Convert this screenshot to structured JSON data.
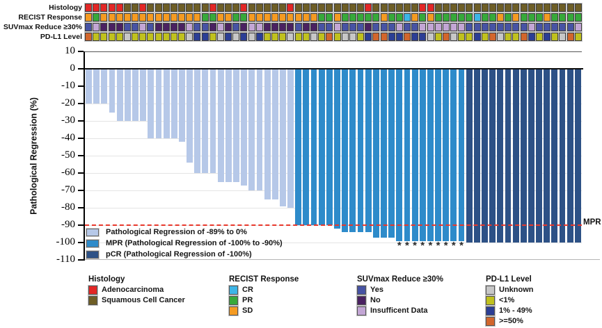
{
  "colors": {
    "bar_light": "#b6c8e8",
    "bar_mpr": "#2e8bca",
    "bar_pcr": "#2d5186",
    "threshold_line": "#e8372b",
    "histology_A": "#e32726",
    "histology_S": "#6e5e26",
    "recist_CR": "#3db5e6",
    "recist_PR": "#37a93a",
    "recist_SD": "#f59b22",
    "suv_Y": "#4753a4",
    "suv_N": "#4a2161",
    "suv_I": "#c3a6d5",
    "pdl1_U": "#c7c7c7",
    "pdl1_L": "#c0c11e",
    "pdl1_M": "#2b3e95",
    "pdl1_H": "#d2662c"
  },
  "tracks": {
    "rows": [
      {
        "label": "Histology",
        "palette_prefix": "histology_",
        "values": [
          "A",
          "A",
          "A",
          "A",
          "A",
          "S",
          "S",
          "A",
          "S",
          "S",
          "S",
          "S",
          "S",
          "S",
          "S",
          "S",
          "A",
          "S",
          "S",
          "S",
          "A",
          "S",
          "S",
          "S",
          "S",
          "S",
          "A",
          "S",
          "S",
          "S",
          "S",
          "S",
          "S",
          "S",
          "S",
          "S",
          "A",
          "S",
          "S",
          "S",
          "S",
          "S",
          "S",
          "A",
          "A",
          "S",
          "S",
          "S",
          "S",
          "S",
          "S",
          "S",
          "S",
          "S",
          "S",
          "S",
          "S",
          "S",
          "S",
          "S",
          "S",
          "S",
          "S",
          "S"
        ]
      },
      {
        "label": "RECIST Response",
        "palette_prefix": "recist_",
        "values": [
          "SD",
          "PR",
          "SD",
          "SD",
          "SD",
          "SD",
          "SD",
          "SD",
          "SD",
          "SD",
          "SD",
          "SD",
          "SD",
          "SD",
          "SD",
          "PR",
          "PR",
          "SD",
          "SD",
          "PR",
          "PR",
          "SD",
          "SD",
          "SD",
          "SD",
          "SD",
          "SD",
          "SD",
          "SD",
          "SD",
          "PR",
          "PR",
          "SD",
          "PR",
          "PR",
          "PR",
          "PR",
          "PR",
          "SD",
          "PR",
          "PR",
          "CR",
          "SD",
          "PR",
          "SD",
          "PR",
          "PR",
          "PR",
          "PR",
          "PR",
          "CR",
          "PR",
          "PR",
          "SD",
          "PR",
          "SD",
          "PR",
          "PR",
          "PR",
          "SD",
          "PR",
          "PR",
          "PR",
          "PR"
        ]
      },
      {
        "label": "SUVmax Reduce ≥30%",
        "palette_prefix": "suv_",
        "values": [
          "Y",
          "I",
          "N",
          "N",
          "N",
          "Y",
          "Y",
          "I",
          "Y",
          "N",
          "N",
          "N",
          "N",
          "I",
          "Y",
          "Y",
          "N",
          "I",
          "N",
          "Y",
          "N",
          "I",
          "I",
          "N",
          "N",
          "N",
          "N",
          "Y",
          "N",
          "N",
          "Y",
          "Y",
          "I",
          "Y",
          "Y",
          "Y",
          "N",
          "Y",
          "Y",
          "Y",
          "I",
          "Y",
          "Y",
          "I",
          "I",
          "I",
          "I",
          "I",
          "I",
          "Y",
          "Y",
          "Y",
          "Y",
          "Y",
          "Y",
          "Y",
          "Y",
          "I",
          "Y",
          "Y",
          "Y",
          "Y",
          "Y",
          "I"
        ]
      },
      {
        "label": "PD-L1 Level",
        "palette_prefix": "pdl1_",
        "values": [
          "H",
          "L",
          "L",
          "L",
          "L",
          "U",
          "L",
          "L",
          "L",
          "L",
          "L",
          "L",
          "L",
          "U",
          "M",
          "M",
          "L",
          "U",
          "M",
          "U",
          "M",
          "U",
          "M",
          "L",
          "L",
          "L",
          "U",
          "L",
          "L",
          "U",
          "L",
          "H",
          "L",
          "U",
          "U",
          "L",
          "M",
          "H",
          "H",
          "M",
          "M",
          "H",
          "M",
          "M",
          "U",
          "L",
          "H",
          "U",
          "L",
          "L",
          "M",
          "L",
          "H",
          "U",
          "L",
          "L",
          "H",
          "M",
          "L",
          "M",
          "L",
          "U",
          "H",
          "L"
        ]
      }
    ]
  },
  "chart_data": {
    "type": "bar",
    "subtype": "waterfall",
    "title": "",
    "xlabel": "",
    "ylabel": "Pathological Regression (%)",
    "ylim": [
      -110,
      10
    ],
    "grid": true,
    "yticks": [
      10,
      0,
      -10,
      -20,
      -30,
      -40,
      -50,
      -60,
      -70,
      -80,
      -90,
      -100,
      -110
    ],
    "values": [
      -20,
      -20,
      -20,
      -25,
      -30,
      -30,
      -30,
      -30,
      -40,
      -40,
      -40,
      -40,
      -42,
      -54,
      -60,
      -60,
      -60,
      -65,
      -65,
      -65,
      -67,
      -70,
      -70,
      -75,
      -75,
      -79,
      -80,
      -90,
      -90,
      -90,
      -90,
      -90,
      -92,
      -94,
      -94,
      -94,
      -94,
      -97,
      -97,
      -97,
      -99,
      -99,
      -99,
      -99,
      -99,
      -99,
      -99,
      -99,
      -99,
      -100,
      -100,
      -100,
      -100,
      -100,
      -100,
      -100,
      -100,
      -100,
      -100,
      -100,
      -100,
      -100,
      -100,
      -100
    ],
    "groups": [
      "light",
      "light",
      "light",
      "light",
      "light",
      "light",
      "light",
      "light",
      "light",
      "light",
      "light",
      "light",
      "light",
      "light",
      "light",
      "light",
      "light",
      "light",
      "light",
      "light",
      "light",
      "light",
      "light",
      "light",
      "light",
      "light",
      "light",
      "mpr",
      "mpr",
      "mpr",
      "mpr",
      "mpr",
      "mpr",
      "mpr",
      "mpr",
      "mpr",
      "mpr",
      "mpr",
      "mpr",
      "mpr",
      "mpr",
      "mpr",
      "mpr",
      "mpr",
      "mpr",
      "mpr",
      "mpr",
      "mpr",
      "mpr",
      "pcr",
      "pcr",
      "pcr",
      "pcr",
      "pcr",
      "pcr",
      "pcr",
      "pcr",
      "pcr",
      "pcr",
      "pcr",
      "pcr",
      "pcr",
      "pcr",
      "pcr"
    ],
    "asterisk_columns": [
      41,
      42,
      43,
      44,
      45,
      46,
      47,
      48,
      49
    ],
    "asterisk_symbol": "*",
    "threshold": {
      "value": -90,
      "label": "MPR"
    },
    "legend": [
      {
        "key": "light",
        "label": "Pathological Regression of -89% to 0%"
      },
      {
        "key": "mpr",
        "label": "MPR (Pathological Regression of -100% to -90%)"
      },
      {
        "key": "pcr",
        "label": "pCR (Pathological Regression of -100%)"
      }
    ]
  },
  "bottom_legend": [
    {
      "title": "Histology",
      "items": [
        {
          "label": "Adenocarcinoma",
          "color": "#e32726"
        },
        {
          "label": "Squamous Cell Cancer",
          "color": "#6e5e26"
        }
      ]
    },
    {
      "title": "RECIST Response",
      "items": [
        {
          "label": "CR",
          "color": "#3db5e6"
        },
        {
          "label": "PR",
          "color": "#37a93a"
        },
        {
          "label": "SD",
          "color": "#f59b22"
        }
      ]
    },
    {
      "title": "SUVmax Reduce ≥30%",
      "items": [
        {
          "label": "Yes",
          "color": "#4753a4"
        },
        {
          "label": "No",
          "color": "#4a2161"
        },
        {
          "label": "Insufficent Data",
          "color": "#c3a6d5"
        }
      ]
    },
    {
      "title": "PD-L1 Level",
      "items": [
        {
          "label": "Unknown",
          "color": "#c7c7c7"
        },
        {
          "label": "<1%",
          "color": "#c0c11e"
        },
        {
          "label": "1% - 49%",
          "color": "#2b3e95"
        },
        {
          "label": ">=50%",
          "color": "#d2662c"
        }
      ]
    }
  ]
}
